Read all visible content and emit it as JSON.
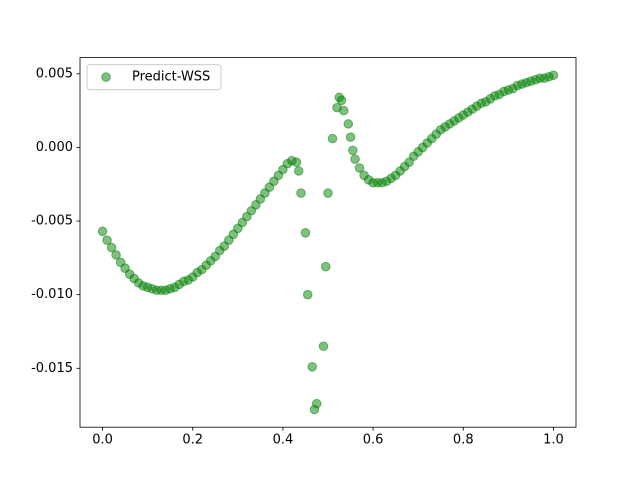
{
  "chart_data": {
    "type": "scatter",
    "x": [
      0.0,
      0.01,
      0.02,
      0.03,
      0.04,
      0.05,
      0.06,
      0.07,
      0.08,
      0.09,
      0.1,
      0.11,
      0.12,
      0.13,
      0.14,
      0.15,
      0.16,
      0.17,
      0.18,
      0.19,
      0.2,
      0.21,
      0.22,
      0.23,
      0.24,
      0.25,
      0.26,
      0.27,
      0.28,
      0.29,
      0.3,
      0.31,
      0.32,
      0.33,
      0.34,
      0.35,
      0.36,
      0.37,
      0.38,
      0.39,
      0.4,
      0.41,
      0.42,
      0.43,
      0.435,
      0.44,
      0.45,
      0.455,
      0.465,
      0.47,
      0.475,
      0.49,
      0.495,
      0.5,
      0.51,
      0.52,
      0.525,
      0.53,
      0.535,
      0.545,
      0.55,
      0.555,
      0.56,
      0.57,
      0.58,
      0.59,
      0.6,
      0.61,
      0.62,
      0.63,
      0.64,
      0.65,
      0.66,
      0.67,
      0.68,
      0.69,
      0.7,
      0.71,
      0.72,
      0.73,
      0.74,
      0.75,
      0.76,
      0.77,
      0.78,
      0.79,
      0.8,
      0.81,
      0.82,
      0.83,
      0.84,
      0.85,
      0.86,
      0.87,
      0.88,
      0.89,
      0.9,
      0.91,
      0.92,
      0.93,
      0.94,
      0.95,
      0.96,
      0.97,
      0.98,
      0.99,
      1.0
    ],
    "series": [
      {
        "name": "Predict-WSS",
        "color": "#008000",
        "values": [
          -0.0057,
          -0.0063,
          -0.0068,
          -0.0073,
          -0.0078,
          -0.0082,
          -0.0086,
          -0.0089,
          -0.0092,
          -0.0094,
          -0.0095,
          -0.0096,
          -0.0097,
          -0.0097,
          -0.0097,
          -0.0096,
          -0.0095,
          -0.0093,
          -0.0091,
          -0.009,
          -0.0088,
          -0.0085,
          -0.0083,
          -0.008,
          -0.0077,
          -0.0074,
          -0.007,
          -0.0067,
          -0.0063,
          -0.0059,
          -0.0055,
          -0.0051,
          -0.0047,
          -0.0043,
          -0.0039,
          -0.0035,
          -0.0031,
          -0.0027,
          -0.0023,
          -0.0019,
          -0.0015,
          -0.0011,
          -0.0009,
          -0.001,
          -0.0016,
          -0.0031,
          -0.0058,
          -0.01,
          -0.0149,
          -0.0178,
          -0.0174,
          -0.0135,
          -0.0081,
          -0.0031,
          0.0006,
          0.0027,
          0.0034,
          0.0032,
          0.0025,
          0.0016,
          0.0007,
          -0.0002,
          -0.0008,
          -0.0014,
          -0.0019,
          -0.0022,
          -0.0024,
          -0.0024,
          -0.0024,
          -0.0023,
          -0.0021,
          -0.0019,
          -0.0016,
          -0.0013,
          -0.001,
          -0.0006,
          -0.0003,
          0.0,
          0.0003,
          0.0006,
          0.0009,
          0.0012,
          0.0014,
          0.0016,
          0.0018,
          0.002,
          0.0022,
          0.0024,
          0.0026,
          0.0028,
          0.003,
          0.0031,
          0.0033,
          0.0035,
          0.0036,
          0.0038,
          0.0039,
          0.004,
          0.0042,
          0.0043,
          0.0044,
          0.0045,
          0.0046,
          0.0047,
          0.0047,
          0.0048,
          0.0049
        ]
      }
    ],
    "xlim": [
      -0.05,
      1.05
    ],
    "xticks": [
      {
        "value": 0,
        "label": "0.0"
      },
      0.2,
      0.4,
      0.6,
      0.8,
      {
        "value": 1,
        "label": "1.0"
      }
    ],
    "ylim": [
      -0.019,
      0.0061
    ],
    "yticks": [
      0.005,
      {
        "value": 0,
        "label": "0.000"
      },
      -0.005,
      {
        "value": -0.01,
        "label": "-0.010"
      },
      -0.015
    ],
    "legend": "upper left",
    "alpha": 0.5
  }
}
